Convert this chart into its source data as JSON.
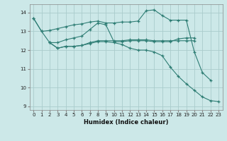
{
  "title": "",
  "xlabel": "Humidex (Indice chaleur)",
  "bg_color": "#cce8e8",
  "grid_color": "#aacccc",
  "line_color": "#2e7d74",
  "marker_color": "#2e7d74",
  "xlim": [
    -0.5,
    23.5
  ],
  "ylim": [
    8.8,
    14.45
  ],
  "yticks": [
    9,
    10,
    11,
    12,
    13,
    14
  ],
  "xticks": [
    0,
    1,
    2,
    3,
    4,
    5,
    6,
    7,
    8,
    9,
    10,
    11,
    12,
    13,
    14,
    15,
    16,
    17,
    18,
    19,
    20,
    21,
    22,
    23
  ],
  "lines": [
    {
      "x": [
        0,
        1,
        2,
        3,
        4,
        5,
        6,
        7,
        8,
        9,
        10,
        11,
        12,
        13,
        14,
        15,
        16,
        17,
        18,
        19,
        20,
        21,
        22
      ],
      "y": [
        13.7,
        13.0,
        13.05,
        13.15,
        13.25,
        13.35,
        13.4,
        13.5,
        13.55,
        13.45,
        13.45,
        13.5,
        13.5,
        13.55,
        14.1,
        14.15,
        13.85,
        13.6,
        13.6,
        13.6,
        11.9,
        10.8,
        10.4
      ]
    },
    {
      "x": [
        0,
        1,
        2,
        3,
        4,
        5,
        6,
        7,
        8,
        9,
        10,
        11,
        12,
        13,
        14,
        15,
        16,
        17,
        18,
        19,
        20
      ],
      "y": [
        13.7,
        13.0,
        12.4,
        12.4,
        12.55,
        12.65,
        12.75,
        13.1,
        13.45,
        13.35,
        12.45,
        12.45,
        12.5,
        12.5,
        12.5,
        12.45,
        12.45,
        12.45,
        12.6,
        12.65,
        12.65
      ]
    },
    {
      "x": [
        2,
        3,
        4,
        5,
        6,
        7,
        8,
        9,
        10,
        11,
        12,
        13,
        14,
        15,
        16,
        17,
        18,
        19,
        20
      ],
      "y": [
        12.4,
        12.1,
        12.2,
        12.2,
        12.25,
        12.4,
        12.5,
        12.5,
        12.5,
        12.5,
        12.55,
        12.55,
        12.55,
        12.5,
        12.5,
        12.5,
        12.5,
        12.5,
        12.5
      ]
    },
    {
      "x": [
        2,
        3,
        4,
        5,
        6,
        7,
        8,
        9,
        10,
        11,
        12,
        13,
        14,
        15,
        16,
        17,
        18,
        19,
        20,
        21,
        22,
        23
      ],
      "y": [
        12.4,
        12.1,
        12.2,
        12.2,
        12.25,
        12.35,
        12.45,
        12.45,
        12.4,
        12.3,
        12.1,
        12.0,
        12.0,
        11.9,
        11.7,
        11.1,
        10.6,
        10.2,
        9.85,
        9.5,
        9.3,
        9.25
      ]
    }
  ]
}
